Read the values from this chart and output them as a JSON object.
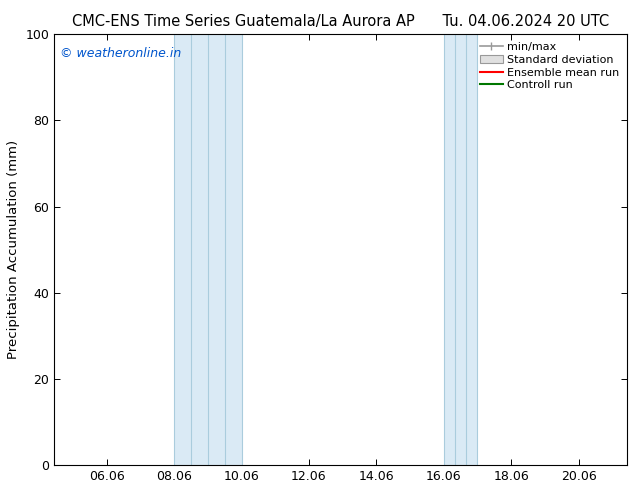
{
  "title_left": "CMC-ENS Time Series Guatemala/La Aurora AP",
  "title_right": "Tu. 04.06.2024 20 UTC",
  "ylabel": "Precipitation Accumulation (mm)",
  "watermark": "© weatheronline.in",
  "watermark_color": "#0055cc",
  "ylim": [
    0,
    100
  ],
  "xlim": [
    4.5,
    21.5
  ],
  "xticks": [
    6.06,
    8.06,
    10.06,
    12.06,
    14.06,
    16.06,
    18.06,
    20.06
  ],
  "xtick_labels": [
    "06.06",
    "08.06",
    "10.06",
    "12.06",
    "14.06",
    "16.06",
    "18.06",
    "20.06"
  ],
  "yticks": [
    0,
    20,
    40,
    60,
    80,
    100
  ],
  "shaded_regions": [
    {
      "xmin": 8.06,
      "xmax": 8.56,
      "color": "#daeaf5"
    },
    {
      "xmin": 8.56,
      "xmax": 9.06,
      "color": "#daeaf5"
    },
    {
      "xmin": 9.06,
      "xmax": 9.56,
      "color": "#daeaf5"
    },
    {
      "xmin": 9.56,
      "xmax": 10.06,
      "color": "#daeaf5"
    },
    {
      "xmin": 16.06,
      "xmax": 16.39,
      "color": "#daeaf5"
    },
    {
      "xmin": 16.39,
      "xmax": 16.72,
      "color": "#daeaf5"
    },
    {
      "xmin": 16.72,
      "xmax": 17.06,
      "color": "#daeaf5"
    }
  ],
  "shaded_region_groups": [
    {
      "xmin": 8.06,
      "xmax": 10.06
    },
    {
      "xmin": 16.06,
      "xmax": 17.06
    }
  ],
  "shaded_vlines": [
    8.56,
    9.06,
    9.56,
    16.39,
    16.72
  ],
  "shaded_color": "#daeaf5",
  "shaded_edge_color": "#aaccdd",
  "vline_color": "#aaccdd",
  "background_color": "#ffffff",
  "legend_labels": [
    "min/max",
    "Standard deviation",
    "Ensemble mean run",
    "Controll run"
  ],
  "legend_colors": [
    "#999999",
    "#cccccc",
    "#ff0000",
    "#007700"
  ],
  "title_fontsize": 10.5,
  "tick_fontsize": 9,
  "ylabel_fontsize": 9.5,
  "watermark_fontsize": 9
}
